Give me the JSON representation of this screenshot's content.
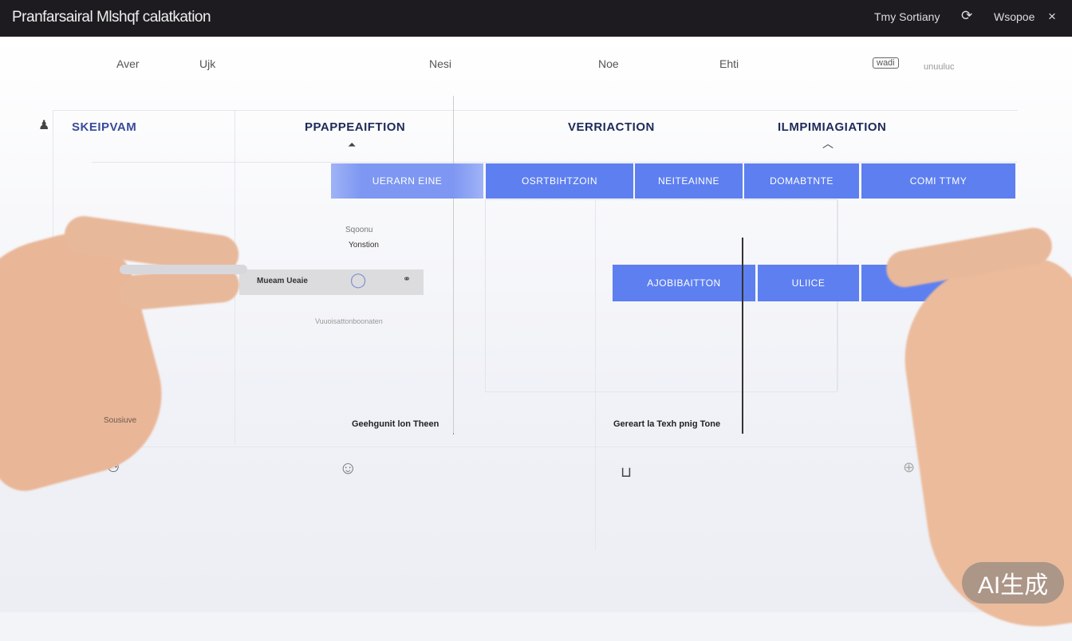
{
  "titlebar": {
    "title": "Pranfarsairal Mlshqf calatkation",
    "user": "Tmy Sortiany",
    "refresh_icon": "refresh-icon",
    "window": "Wsopoe",
    "close": "×"
  },
  "toolbar": {
    "items": [
      "Aver",
      "Ujk",
      "Nesi",
      "Noe",
      "Ehti",
      "wadi",
      "unuuluc"
    ]
  },
  "phases": [
    "SKEIPVAM",
    "PPAPPEAIFTION",
    "VERRIACTION",
    "ILMPIMIAGIATION"
  ],
  "bars_top": [
    "UERARN EINE",
    "OSRTBIHTZOIN",
    "NEITEAINNE",
    "DOMABTNTE",
    "COMI TTMY"
  ],
  "bars_mid": [
    "AJOBIBAITTON",
    "ULIICE",
    ""
  ],
  "notes": {
    "n1": "Sqoonu",
    "n2": "Yonstion",
    "slider": "Mueam Ueaie",
    "caption": "Vuuoisattonboonaten",
    "left": "Sousiuve"
  },
  "labels": {
    "l1": "Geehgunit lon Theen",
    "l2": "Gereart la Texh pnig Tone"
  },
  "badge": "AI生成",
  "colors": {
    "accent": "#5d7ff0",
    "titlebar": "#1d1b20"
  }
}
